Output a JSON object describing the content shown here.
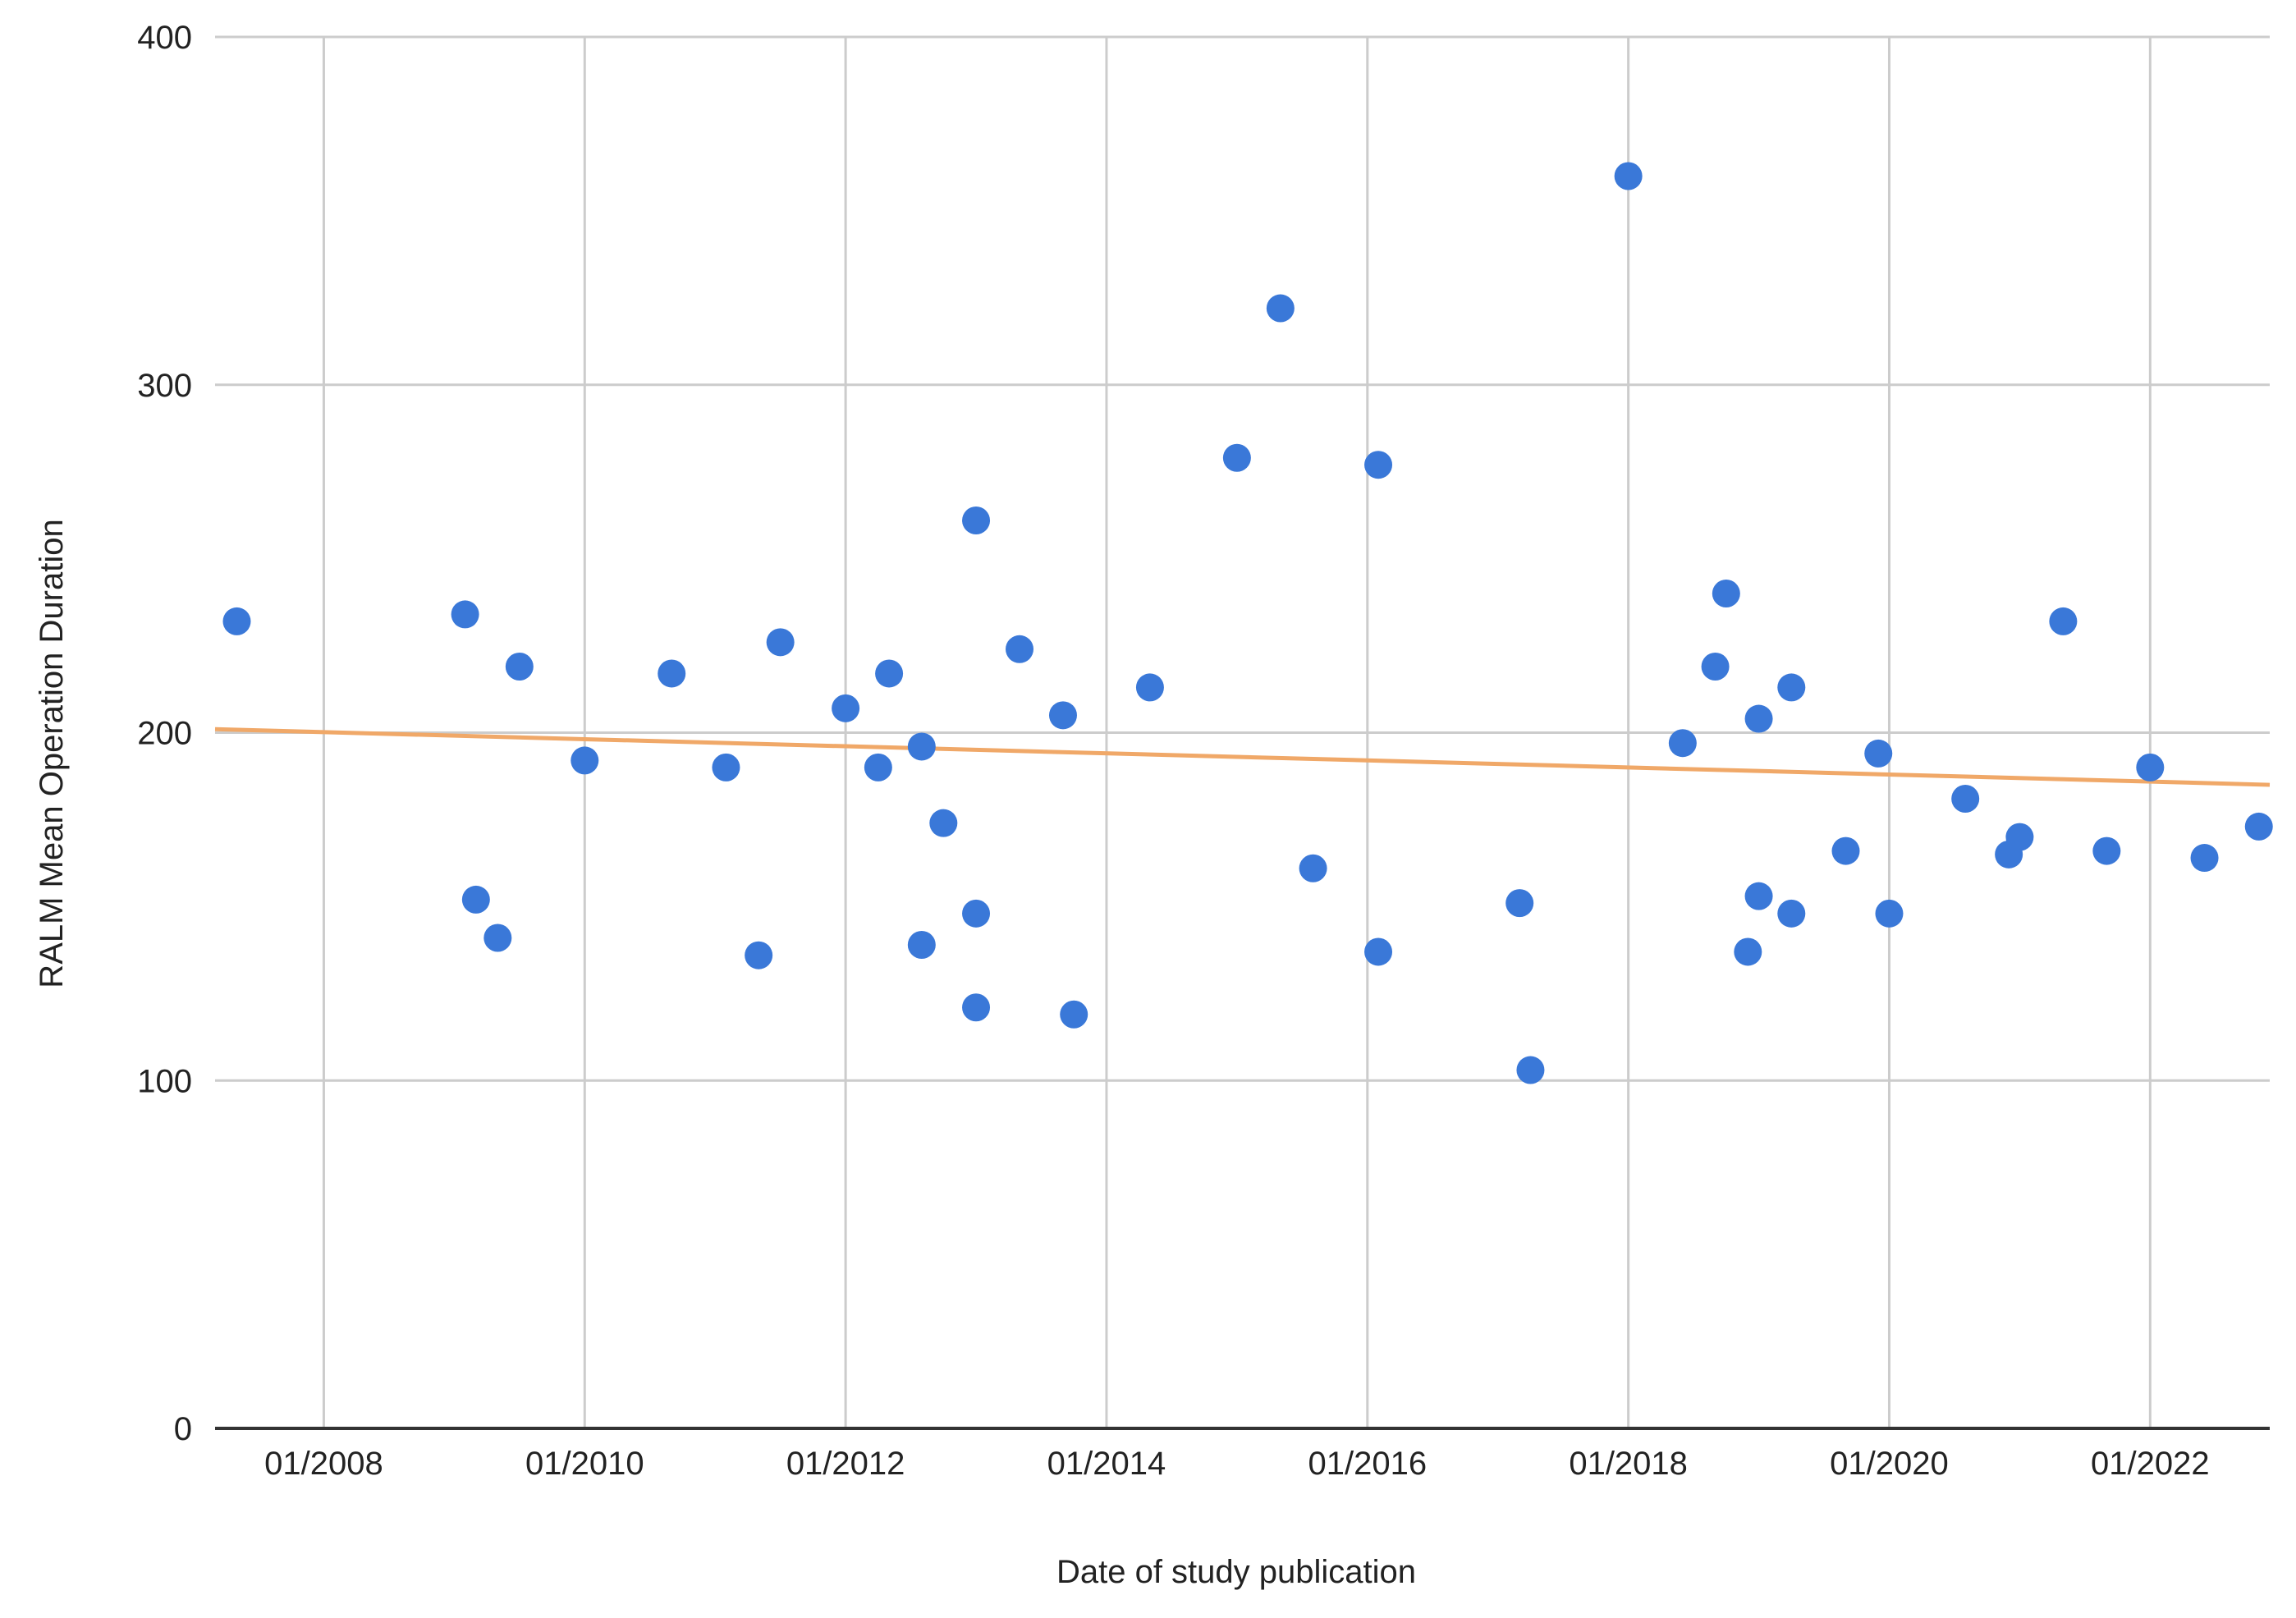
{
  "chart_data": {
    "type": "scatter",
    "title": "",
    "xlabel": "Date of study publication",
    "ylabel": "RALM Mean Operation Duration",
    "x_ticks": [
      "01/2008",
      "01/2010",
      "01/2012",
      "01/2014",
      "01/2016",
      "01/2018",
      "01/2020",
      "01/2022"
    ],
    "y_ticks": [
      "0",
      "100",
      "200",
      "300",
      "400"
    ],
    "xlim": [
      "2007-03",
      "2022-12"
    ],
    "ylim": [
      0,
      400
    ],
    "grid": true,
    "colors": {
      "points": "#3a78d8",
      "trendline": "#f0a868",
      "grid": "#cccccc",
      "axis": "#333333"
    },
    "trendline": {
      "start": [
        "2007-03",
        201
      ],
      "end": [
        "2022-12",
        185
      ]
    },
    "series": [
      {
        "points": [
          [
            "2007-05",
            232
          ],
          [
            "2009-02",
            234
          ],
          [
            "2009-03",
            152
          ],
          [
            "2009-05",
            141
          ],
          [
            "2009-07",
            219
          ],
          [
            "2010-01",
            192
          ],
          [
            "2010-09",
            217
          ],
          [
            "2011-02",
            190
          ],
          [
            "2011-05",
            136
          ],
          [
            "2011-07",
            226
          ],
          [
            "2012-01",
            207
          ],
          [
            "2012-04",
            190
          ],
          [
            "2012-05",
            217
          ],
          [
            "2012-08",
            196
          ],
          [
            "2012-08",
            139
          ],
          [
            "2012-10",
            174
          ],
          [
            "2013-01",
            261
          ],
          [
            "2013-01",
            148
          ],
          [
            "2013-01",
            121
          ],
          [
            "2013-05",
            224
          ],
          [
            "2013-09",
            205
          ],
          [
            "2013-10",
            119
          ],
          [
            "2014-05",
            213
          ],
          [
            "2015-01",
            279
          ],
          [
            "2015-05",
            322
          ],
          [
            "2015-08",
            161
          ],
          [
            "2016-02",
            277
          ],
          [
            "2016-02",
            137
          ],
          [
            "2017-03",
            151
          ],
          [
            "2017-04",
            103
          ],
          [
            "2018-01",
            360
          ],
          [
            "2018-06",
            197
          ],
          [
            "2018-09",
            219
          ],
          [
            "2018-10",
            240
          ],
          [
            "2018-12",
            137
          ],
          [
            "2019-01",
            204
          ],
          [
            "2019-01",
            153
          ],
          [
            "2019-04",
            213
          ],
          [
            "2019-04",
            148
          ],
          [
            "2019-09",
            166
          ],
          [
            "2019-12",
            194
          ],
          [
            "2020-01",
            148
          ],
          [
            "2020-08",
            181
          ],
          [
            "2020-12",
            165
          ],
          [
            "2021-01",
            170
          ],
          [
            "2021-05",
            232
          ],
          [
            "2021-09",
            166
          ],
          [
            "2022-01",
            190
          ],
          [
            "2022-06",
            164
          ],
          [
            "2022-11",
            173
          ]
        ]
      }
    ]
  }
}
